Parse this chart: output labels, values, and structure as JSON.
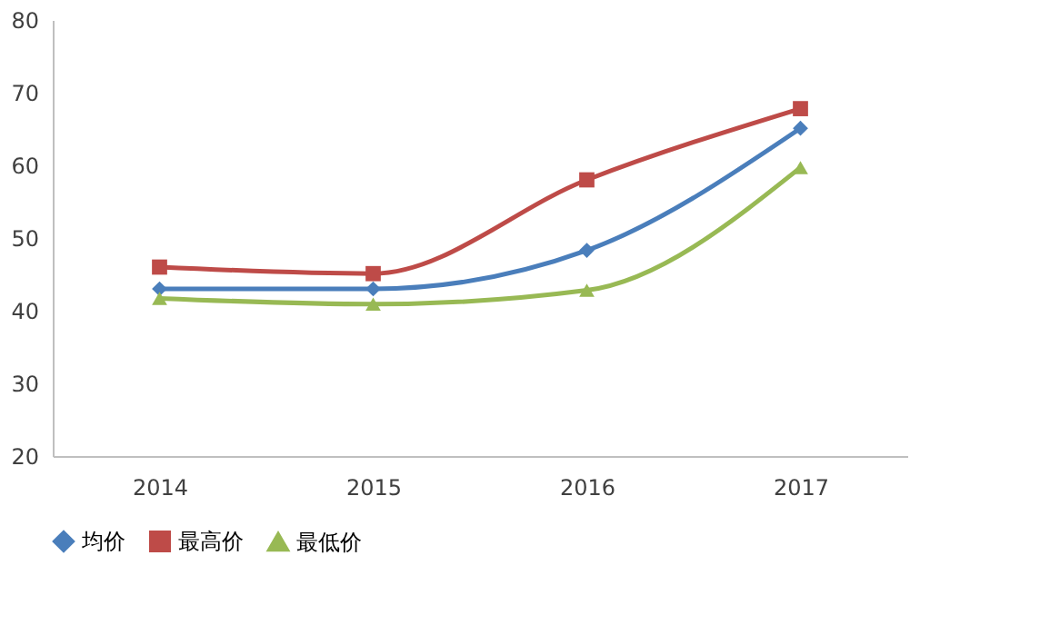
{
  "chart_data": {
    "type": "line",
    "categories": [
      "2014",
      "2015",
      "2016",
      "2017"
    ],
    "series": [
      {
        "name": "均价",
        "color": "#4a7ebb",
        "marker": "diamond",
        "values": [
          43.0,
          43.0,
          48.3,
          65.1
        ]
      },
      {
        "name": "最高价",
        "color": "#be4b48",
        "marker": "square",
        "values": [
          46.0,
          45.1,
          58.0,
          67.8
        ]
      },
      {
        "name": "最低价",
        "color": "#98b954",
        "marker": "triangle",
        "values": [
          41.7,
          40.9,
          42.8,
          59.7
        ]
      }
    ],
    "ylim": [
      20,
      80
    ],
    "yticks": [
      20,
      30,
      40,
      50,
      60,
      70,
      80
    ],
    "grid": false,
    "legend": "bottom"
  }
}
